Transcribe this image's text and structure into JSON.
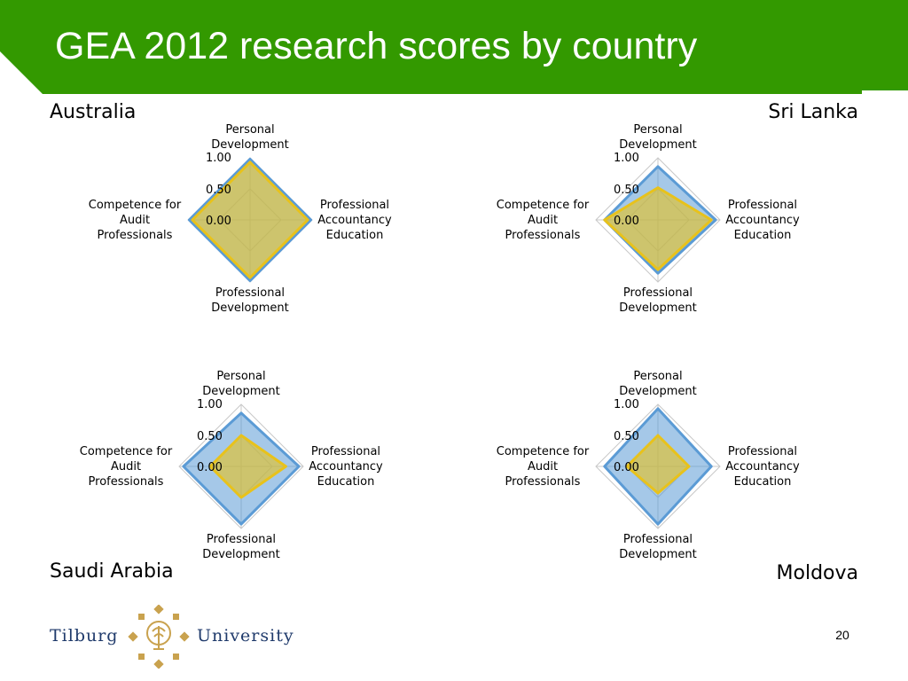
{
  "title": "GEA 2012 research scores by country",
  "colors": {
    "header": "#339900",
    "series_blue": "#5b9bd5",
    "series_yellow": "#e8c21b",
    "logo_gold": "#c9a24e",
    "logo_blue": "#1f3a6b"
  },
  "footer": {
    "logo_left": "Tilburg",
    "logo_right": "University",
    "page_number": "20"
  },
  "chart_data": [
    {
      "type": "radar",
      "country": "Australia",
      "axes": [
        "Personal Development",
        "Professional Accountancy Education",
        "Professional Development",
        "Competence for Audit Professionals"
      ],
      "tick_labels": [
        "1.00",
        "0.50",
        "0.00"
      ],
      "rlim": [
        0,
        1
      ],
      "series": [
        {
          "values": [
            0.98,
            0.98,
            0.98,
            0.98
          ],
          "color": "#5b9bd5"
        },
        {
          "values": [
            0.93,
            0.93,
            0.93,
            0.93
          ],
          "color": "#e8c21b"
        }
      ]
    },
    {
      "type": "radar",
      "country": "Sri Lanka",
      "axes": [
        "Personal Development",
        "Professional Accountancy Education",
        "Professional Development",
        "Competence for Audit Professionals"
      ],
      "tick_labels": [
        "1.00",
        "0.50",
        "0.00"
      ],
      "rlim": [
        0,
        1
      ],
      "series": [
        {
          "values": [
            0.86,
            0.93,
            0.86,
            0.86
          ],
          "color": "#5b9bd5"
        },
        {
          "values": [
            0.52,
            0.86,
            0.8,
            0.86
          ],
          "color": "#e8c21b"
        }
      ]
    },
    {
      "type": "radar",
      "country": "Saudi Arabia",
      "axes": [
        "Personal Development",
        "Professional Accountancy Education",
        "Professional Development",
        "Competence for Audit Professionals"
      ],
      "tick_labels": [
        "1.00",
        "0.50",
        "0.00"
      ],
      "rlim": [
        0,
        1
      ],
      "series": [
        {
          "values": [
            0.86,
            0.93,
            0.93,
            0.93
          ],
          "color": "#5b9bd5"
        },
        {
          "values": [
            0.5,
            0.72,
            0.5,
            0.5
          ],
          "color": "#e8c21b"
        }
      ]
    },
    {
      "type": "radar",
      "country": "Moldova",
      "axes": [
        "Personal Development",
        "Professional Accountancy Education",
        "Professional Development",
        "Competence for Audit Professionals"
      ],
      "tick_labels": [
        "1.00",
        "0.50",
        "0.00"
      ],
      "rlim": [
        0,
        1
      ],
      "series": [
        {
          "values": [
            0.93,
            0.86,
            0.93,
            0.86
          ],
          "color": "#5b9bd5"
        },
        {
          "values": [
            0.5,
            0.5,
            0.43,
            0.5
          ],
          "color": "#e8c21b"
        }
      ]
    }
  ]
}
